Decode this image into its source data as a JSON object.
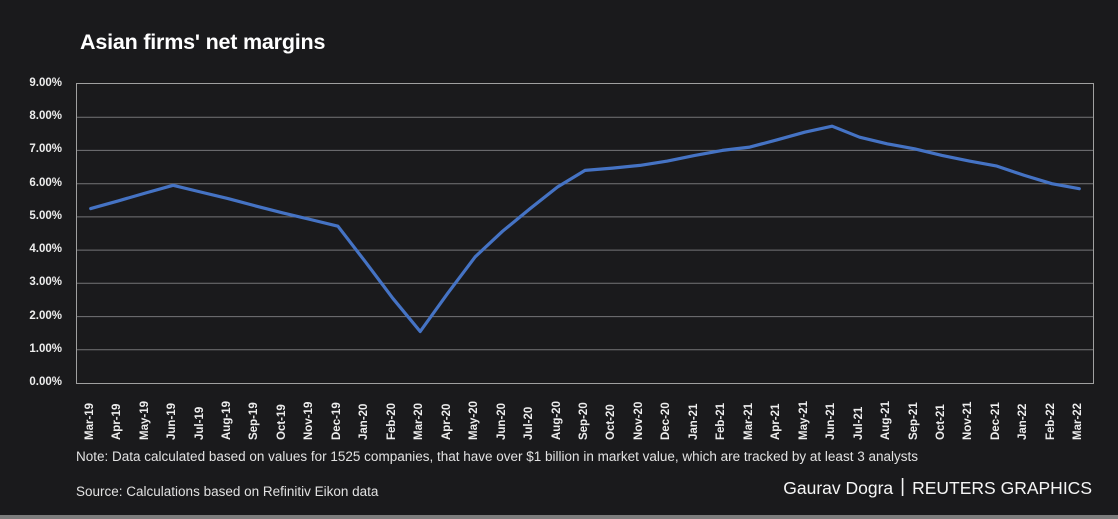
{
  "header": {
    "title": "Asian firms' net margins"
  },
  "chart_data": {
    "type": "line",
    "title": "Asian firms' net margins",
    "categories": [
      "Mar-19",
      "Apr-19",
      "May-19",
      "Jun-19",
      "Jul-19",
      "Aug-19",
      "Sep-19",
      "Oct-19",
      "Nov-19",
      "Dec-19",
      "Jan-20",
      "Feb-20",
      "Mar-20",
      "Apr-20",
      "May-20",
      "Jun-20",
      "Jul-20",
      "Aug-20",
      "Sep-20",
      "Oct-20",
      "Nov-20",
      "Dec-20",
      "Jan-21",
      "Feb-21",
      "Mar-21",
      "Apr-21",
      "May-21",
      "Jun-21",
      "Jul-21",
      "Aug-21",
      "Sep-21",
      "Oct-21",
      "Nov-21",
      "Dec-21",
      "Jan-22",
      "Feb-22",
      "Mar-22"
    ],
    "series": [
      {
        "name": "Net margin",
        "color": "#4573c4",
        "values": [
          5.25,
          5.48,
          5.72,
          5.95,
          5.75,
          5.55,
          5.33,
          5.12,
          4.92,
          4.72,
          3.65,
          2.55,
          1.55,
          2.7,
          3.8,
          4.57,
          5.25,
          5.9,
          6.4,
          6.47,
          6.55,
          6.68,
          6.85,
          7.0,
          7.1,
          7.32,
          7.55,
          7.73,
          7.4,
          7.2,
          7.05,
          6.85,
          6.68,
          6.53,
          6.25,
          6.0,
          5.85
        ]
      }
    ],
    "xlabel": "",
    "ylabel": "",
    "ylim": [
      0,
      9
    ],
    "ytick_step": 1,
    "ytick_labels": [
      "0.00%",
      "1.00%",
      "2.00%",
      "3.00%",
      "4.00%",
      "5.00%",
      "6.00%",
      "7.00%",
      "8.00%",
      "9.00%"
    ],
    "grid": "horizontal",
    "legend": "none"
  },
  "footer": {
    "note": "Note: Data calculated based on values for 1525 companies, that have over $1 billion in market value, which are tracked by at least 3 analysts",
    "source": "Source: Calculations based on Refinitiv Eikon data",
    "credit_author": "Gaurav Dogra",
    "credit_separator": "|",
    "credit_brand": "REUTERS GRAPHICS"
  },
  "colors": {
    "background": "#1a1a1c",
    "line": "#4573c4",
    "gridline": "#757577",
    "axis_border": "#a0a0a0",
    "bottom_bar": "#7d7d7d"
  }
}
